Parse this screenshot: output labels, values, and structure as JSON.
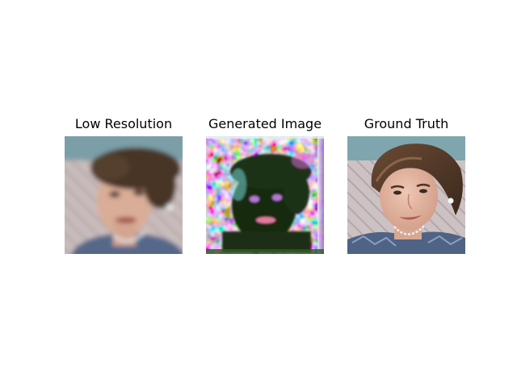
{
  "panels": [
    {
      "title": "Low Resolution"
    },
    {
      "title": "Generated Image"
    },
    {
      "title": "Ground Truth"
    }
  ],
  "colors": {
    "background": "#ffffff",
    "skin": "#d9ad97",
    "hair": "#4a3628",
    "sky": "#7c9fa7",
    "wall": "#c9bcbc",
    "dress": "#56688a",
    "generated_dark": "#15290f",
    "generated_noise_magenta": "#d56ad8",
    "generated_noise_cyan": "#7de4e8"
  }
}
